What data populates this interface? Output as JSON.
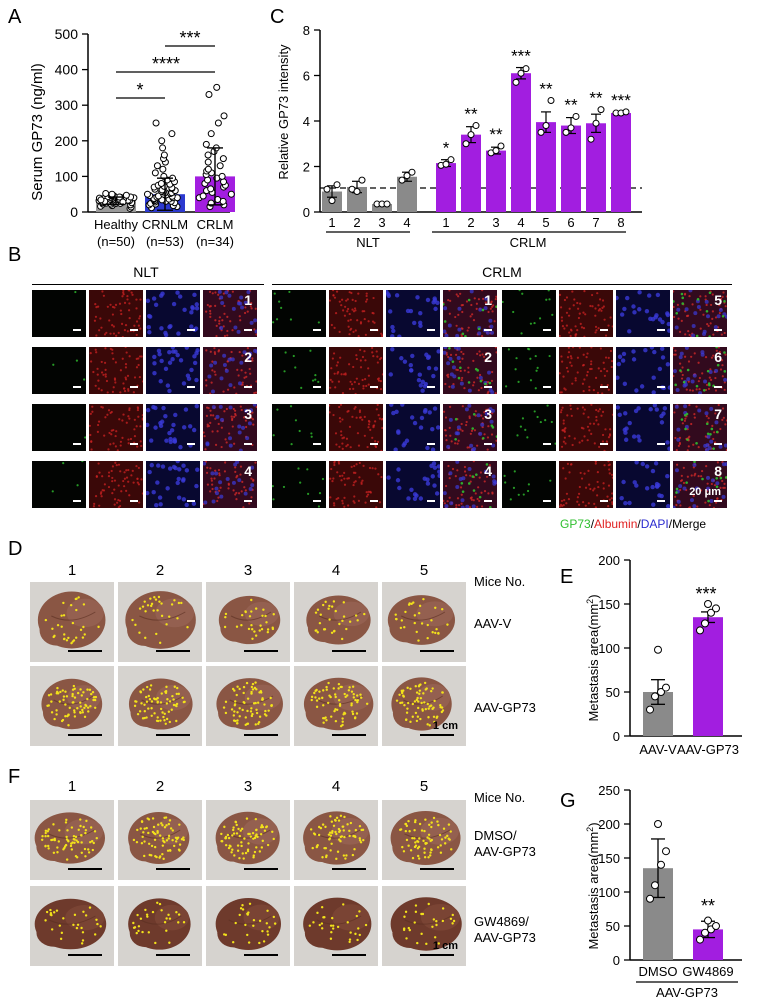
{
  "panels": {
    "A": "A",
    "B": "B",
    "C": "C",
    "D": "D",
    "E": "E",
    "F": "F",
    "G": "G"
  },
  "colors": {
    "healthy": "#9a9a9a",
    "crnlm": "#2d3ad0",
    "crlm": "#a21ee0",
    "gray_bar": "#8a8a8a",
    "purple_bar": "#a21ee0",
    "gfp": "#2fbf2f",
    "albumin": "#e02020",
    "dapi": "#2a2acf"
  },
  "panel_a": {
    "ylabel": "Serum GP73 (ng/ml)",
    "yticks": [
      "0",
      "100",
      "200",
      "300",
      "400",
      "500"
    ],
    "groups": [
      {
        "name": "Healthy",
        "n": "(n=50)"
      },
      {
        "name": "CRNLM",
        "n": "(n=53)"
      },
      {
        "name": "CRLM",
        "n": "(n=34)"
      }
    ],
    "sig": [
      "*",
      "****",
      "***"
    ]
  },
  "panel_c": {
    "ylabel": "Relative GP73 intensity",
    "yticks": [
      "0",
      "2",
      "4",
      "6",
      "8"
    ],
    "nlt_label": "NLT",
    "crlm_label": "CRLM",
    "nlt_ticks": [
      "1",
      "2",
      "3",
      "4"
    ],
    "crlm_ticks": [
      "1",
      "2",
      "3",
      "4",
      "5",
      "6",
      "7",
      "8"
    ],
    "sig": [
      "*",
      "**",
      "**",
      "***",
      "**",
      "**",
      "**",
      "***"
    ]
  },
  "panel_b": {
    "nlt_label": "NLT",
    "crlm_label": "CRLM",
    "nlt_rows": [
      "1",
      "2",
      "3",
      "4"
    ],
    "crlm_left_rows": [
      "1",
      "2",
      "3",
      "4"
    ],
    "crlm_right_rows": [
      "5",
      "6",
      "7",
      "8"
    ],
    "scale_text": "20 μm",
    "channels": {
      "gp73": "GP73",
      "sep1": "/",
      "albumin": "Albumin",
      "sep2": "/",
      "dapi": "DAPI",
      "sep3": "/",
      "merge": "Merge"
    }
  },
  "panel_d": {
    "cols": [
      "1",
      "2",
      "3",
      "4",
      "5"
    ],
    "mice_label": "Mice No.",
    "rows": [
      "AAV-V",
      "AAV-GP73"
    ],
    "scale": "1 cm"
  },
  "panel_e": {
    "ylabel": "Metastasis area(mm",
    "ylabel_sup": "2",
    "ylabel_end": ")",
    "yticks": [
      "0",
      "50",
      "100",
      "150",
      "200"
    ],
    "groups": [
      "AAV-V",
      "AAV-GP73"
    ],
    "sig": "***"
  },
  "panel_f": {
    "cols": [
      "1",
      "2",
      "3",
      "4",
      "5"
    ],
    "mice_label": "Mice No.",
    "rows": [
      {
        "line1": "DMSO/",
        "line2": "AAV-GP73"
      },
      {
        "line1": "GW4869/",
        "line2": "AAV-GP73"
      }
    ],
    "scale": "1 cm"
  },
  "panel_g": {
    "ylabel": "Metastasis area(mm",
    "ylabel_sup": "2",
    "ylabel_end": ")",
    "yticks": [
      "0",
      "50",
      "100",
      "150",
      "200",
      "250"
    ],
    "groups": [
      "DMSO",
      "GW4869"
    ],
    "bracket_label": "AAV-GP73",
    "sig": "**"
  },
  "chart_data": [
    {
      "id": "A",
      "type": "scatter",
      "categories": [
        "Healthy",
        "CRNLM",
        "CRLM"
      ],
      "series": [
        {
          "name": "Healthy",
          "mean": 32,
          "sd": 10,
          "points": [
            10,
            14,
            16,
            18,
            20,
            22,
            22,
            24,
            24,
            25,
            26,
            26,
            27,
            28,
            28,
            29,
            30,
            30,
            31,
            31,
            32,
            32,
            33,
            33,
            34,
            34,
            35,
            35,
            36,
            36,
            37,
            38,
            38,
            39,
            40,
            40,
            41,
            42,
            42,
            43,
            44,
            45,
            46,
            47,
            48,
            50,
            52,
            30,
            28,
            34
          ]
        },
        {
          "name": "CRNLM",
          "mean": 50,
          "sd": 45,
          "points": [
            12,
            15,
            18,
            20,
            22,
            24,
            26,
            28,
            30,
            30,
            32,
            34,
            35,
            36,
            38,
            40,
            40,
            42,
            44,
            45,
            46,
            48,
            50,
            50,
            52,
            54,
            55,
            56,
            58,
            60,
            62,
            64,
            66,
            68,
            70,
            72,
            75,
            78,
            80,
            85,
            90,
            95,
            100,
            110,
            120,
            130,
            140,
            150,
            160,
            180,
            200,
            220,
            250
          ]
        },
        {
          "name": "CRLM",
          "mean": 100,
          "sd": 80,
          "points": [
            15,
            20,
            25,
            30,
            35,
            40,
            45,
            50,
            55,
            60,
            65,
            70,
            75,
            80,
            85,
            90,
            95,
            100,
            105,
            110,
            115,
            120,
            130,
            140,
            150,
            160,
            170,
            180,
            190,
            220,
            250,
            270,
            330,
            350
          ]
        }
      ],
      "ylim": [
        0,
        500
      ]
    },
    {
      "id": "C",
      "type": "bar",
      "categories": [
        "NLT 1",
        "NLT 2",
        "NLT 3",
        "NLT 4",
        "CRLM 1",
        "CRLM 2",
        "CRLM 3",
        "CRLM 4",
        "CRLM 5",
        "CRLM 6",
        "CRLM 7",
        "CRLM 8"
      ],
      "values": [
        0.9,
        1.1,
        0.35,
        1.55,
        2.15,
        3.4,
        2.7,
        6.1,
        3.95,
        3.8,
        3.9,
        4.35
      ],
      "errors": [
        0.25,
        0.25,
        0.05,
        0.2,
        0.15,
        0.35,
        0.15,
        0.25,
        0.45,
        0.35,
        0.4,
        0.05
      ],
      "points": [
        [
          1.0,
          0.5,
          1.2
        ],
        [
          1.0,
          0.9,
          1.4
        ],
        [
          0.35,
          0.35,
          0.35
        ],
        [
          1.4,
          1.6,
          1.75
        ],
        [
          2.05,
          2.1,
          2.3
        ],
        [
          3.0,
          3.4,
          3.8
        ],
        [
          2.6,
          2.7,
          2.9
        ],
        [
          5.7,
          6.1,
          6.3
        ],
        [
          3.5,
          3.8,
          4.9
        ],
        [
          3.5,
          3.7,
          4.2
        ],
        [
          3.2,
          3.9,
          4.5
        ],
        [
          4.35,
          4.35,
          4.4
        ]
      ],
      "reference_line": 1,
      "ylim": [
        0,
        8
      ]
    },
    {
      "id": "E",
      "type": "bar",
      "categories": [
        "AAV-V",
        "AAV-GP73"
      ],
      "values": [
        50,
        135
      ],
      "errors": [
        14,
        6
      ],
      "points": [
        [
          30,
          45,
          50,
          55,
          98
        ],
        [
          120,
          128,
          140,
          145,
          150
        ]
      ],
      "ylim": [
        0,
        200
      ]
    },
    {
      "id": "G",
      "type": "bar",
      "categories": [
        "DMSO",
        "GW4869"
      ],
      "values": [
        135,
        45
      ],
      "errors": [
        43,
        12
      ],
      "points": [
        [
          90,
          110,
          140,
          160,
          200
        ],
        [
          30,
          40,
          45,
          50,
          58
        ]
      ],
      "ylim": [
        0,
        250
      ]
    }
  ]
}
